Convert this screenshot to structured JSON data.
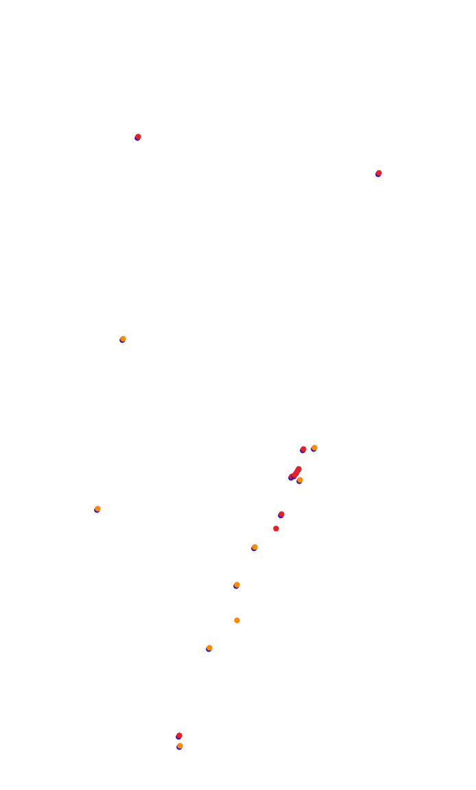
{
  "map": {
    "colors": {
      "background": "#ffffff",
      "blue": "#1a10d8",
      "red": "#ee1c24",
      "orange": "#ff8a00"
    },
    "markers": [
      {
        "name": "marker-01",
        "lon": 201,
        "lat": 200,
        "layers": [
          "blue",
          "red"
        ]
      },
      {
        "name": "marker-02",
        "lon": 552,
        "lat": 253,
        "layers": [
          "blue",
          "red"
        ]
      },
      {
        "name": "marker-03",
        "lon": 179,
        "lat": 495,
        "layers": [
          "blue",
          "orange"
        ]
      },
      {
        "name": "marker-04",
        "lon": 442,
        "lat": 656,
        "layers": [
          "blue",
          "red"
        ]
      },
      {
        "name": "marker-05",
        "lon": 458,
        "lat": 654,
        "layers": [
          "blue",
          "orange"
        ]
      },
      {
        "name": "marker-06",
        "lon": 435,
        "lat": 685,
        "layers": [
          "blue",
          "red"
        ]
      },
      {
        "name": "marker-07",
        "lon": 432,
        "lat": 690,
        "layers": [
          "blue",
          "red"
        ]
      },
      {
        "name": "marker-08",
        "lon": 425,
        "lat": 696,
        "layers": [
          "blue",
          "red"
        ]
      },
      {
        "name": "marker-09",
        "lon": 429,
        "lat": 694,
        "layers": [
          "blue",
          "red"
        ]
      },
      {
        "name": "marker-10",
        "lon": 437,
        "lat": 701,
        "layers": [
          "blue",
          "orange"
        ]
      },
      {
        "name": "marker-11",
        "lon": 142,
        "lat": 743,
        "layers": [
          "blue",
          "orange"
        ]
      },
      {
        "name": "marker-12",
        "lon": 410,
        "lat": 751,
        "layers": [
          "blue",
          "red"
        ]
      },
      {
        "name": "marker-13",
        "lon": 402,
        "lat": 772,
        "layers": [
          "red"
        ]
      },
      {
        "name": "marker-14",
        "lon": 371,
        "lat": 799,
        "layers": [
          "blue",
          "orange"
        ]
      },
      {
        "name": "marker-15",
        "lon": 345,
        "lat": 854,
        "layers": [
          "blue",
          "orange"
        ]
      },
      {
        "name": "marker-16",
        "lon": 345,
        "lat": 906,
        "layers": [
          "orange"
        ]
      },
      {
        "name": "marker-17",
        "lon": 305,
        "lat": 946,
        "layers": [
          "blue",
          "orange"
        ]
      },
      {
        "name": "marker-18",
        "lon": 261,
        "lat": 1074,
        "layers": [
          "blue",
          "red"
        ]
      },
      {
        "name": "marker-19",
        "lon": 262,
        "lat": 1089,
        "layers": [
          "blue",
          "orange"
        ]
      }
    ]
  }
}
